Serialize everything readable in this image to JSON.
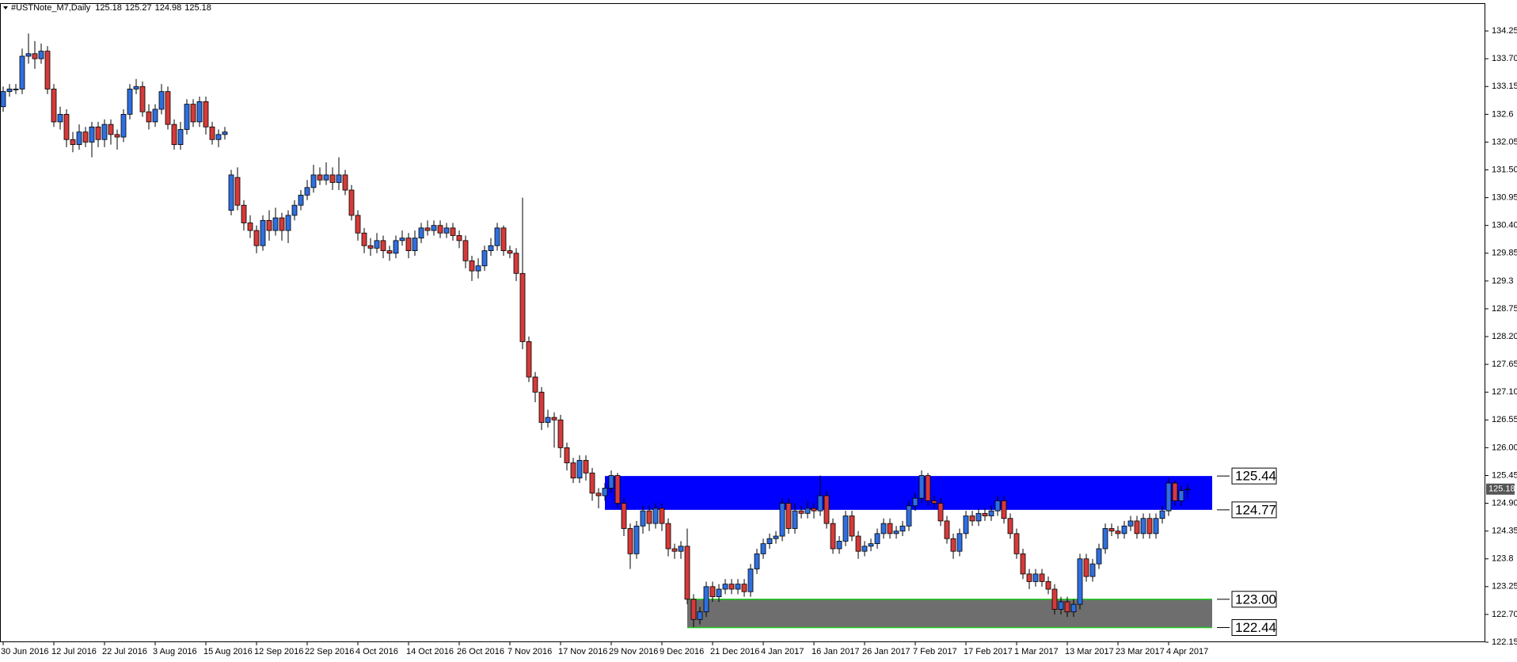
{
  "chart_data": {
    "type": "candlestick",
    "title": "#USTNote_M7,Daily",
    "categories": [
      "30 Jun 2016",
      null,
      null,
      null,
      null,
      null,
      null,
      null,
      "12 Jul 2016",
      null,
      null,
      null,
      null,
      null,
      null,
      null,
      "22 Jul 2016",
      null,
      null,
      null,
      null,
      null,
      null,
      null,
      "3 Aug 2016",
      null,
      null,
      null,
      null,
      null,
      null,
      null,
      "15 Aug 2016",
      null,
      null,
      null,
      null,
      null,
      null,
      null,
      "12 Sep 2016",
      null,
      null,
      null,
      null,
      null,
      null,
      null,
      "22 Sep 2016",
      null,
      null,
      null,
      null,
      null,
      null,
      null,
      "4 Oct 2016",
      null,
      null,
      null,
      null,
      null,
      null,
      null,
      "14 Oct 2016",
      null,
      null,
      null,
      null,
      null,
      null,
      null,
      "26 Oct 2016",
      null,
      null,
      null,
      null,
      null,
      null,
      null,
      "7 Nov 2016",
      null,
      null,
      null,
      null,
      null,
      null,
      null,
      "17 Nov 2016",
      null,
      null,
      null,
      null,
      null,
      null,
      null,
      "29 Nov 2016",
      null,
      null,
      null,
      null,
      null,
      null,
      null,
      "9 Dec 2016",
      null,
      null,
      null,
      null,
      null,
      null,
      null,
      "21 Dec 2016",
      null,
      null,
      null,
      null,
      null,
      null,
      null,
      "4 Jan 2017",
      null,
      null,
      null,
      null,
      null,
      null,
      null,
      "16 Jan 2017",
      null,
      null,
      null,
      null,
      null,
      null,
      null,
      "26 Jan 2017",
      null,
      null,
      null,
      null,
      null,
      null,
      null,
      "7 Feb 2017",
      null,
      null,
      null,
      null,
      null,
      null,
      null,
      "17 Feb 2017",
      null,
      null,
      null,
      null,
      null,
      null,
      null,
      "1 Mar 2017",
      null,
      null,
      null,
      null,
      null,
      null,
      null,
      "13 Mar 2017",
      null,
      null,
      null,
      null,
      null,
      null,
      null,
      "23 Mar 2017",
      null,
      null,
      null,
      null,
      null,
      null,
      null,
      "4 Apr 2017",
      null,
      null,
      null
    ],
    "open": [
      132.75,
      133.05,
      133.1,
      133.1,
      133.75,
      133.8,
      133.7,
      133.85,
      133.1,
      132.45,
      132.6,
      132.1,
      132.0,
      132.25,
      132.05,
      132.35,
      132.1,
      132.4,
      132.2,
      132.15,
      132.6,
      133.1,
      133.15,
      132.65,
      132.45,
      132.7,
      133.05,
      132.4,
      132.0,
      132.3,
      132.8,
      132.45,
      132.85,
      132.35,
      132.1,
      132.2,
      130.7,
      131.35,
      130.8,
      130.45,
      130.3,
      130.0,
      130.5,
      130.3,
      130.55,
      130.3,
      130.6,
      130.8,
      131.0,
      131.15,
      131.4,
      131.3,
      131.4,
      131.25,
      131.4,
      131.1,
      130.6,
      130.25,
      130.0,
      129.95,
      130.1,
      129.9,
      129.85,
      130.1,
      130.15,
      129.9,
      130.15,
      130.35,
      130.3,
      130.4,
      130.25,
      130.35,
      130.2,
      130.1,
      129.7,
      129.5,
      129.6,
      129.9,
      130.0,
      130.35,
      129.9,
      129.85,
      129.45,
      128.1,
      127.4,
      127.1,
      126.5,
      126.6,
      126.55,
      126.0,
      125.7,
      125.4,
      125.75,
      125.5,
      125.1,
      125.05,
      125.2,
      125.45,
      124.9,
      124.4,
      123.9,
      124.45,
      124.75,
      124.5,
      124.8,
      124.5,
      124.0,
      123.95,
      124.05,
      123.0,
      122.6,
      122.75,
      123.25,
      123.05,
      123.2,
      123.3,
      123.2,
      123.3,
      123.15,
      123.6,
      123.9,
      124.1,
      124.2,
      124.25,
      124.9,
      124.4,
      124.75,
      124.7,
      124.8,
      124.75,
      125.05,
      124.5,
      124.0,
      124.15,
      124.65,
      124.25,
      123.95,
      124.05,
      124.1,
      124.3,
      124.5,
      124.3,
      124.35,
      124.45,
      124.85,
      125.0,
      125.45,
      124.95,
      124.9,
      124.55,
      124.2,
      123.95,
      124.3,
      124.65,
      124.55,
      124.7,
      124.65,
      124.75,
      124.95,
      124.6,
      124.3,
      123.9,
      123.5,
      123.35,
      123.5,
      123.35,
      123.2,
      122.8,
      122.95,
      122.75,
      122.9,
      123.8,
      123.45,
      123.7,
      124.0,
      124.4,
      124.35,
      124.3,
      124.45,
      124.55,
      124.3,
      124.6,
      124.3,
      124.6,
      124.75,
      125.3,
      124.95,
      125.18
    ],
    "high": [
      133.15,
      133.2,
      133.2,
      133.9,
      134.2,
      134.05,
      134.0,
      133.95,
      133.2,
      132.75,
      132.7,
      132.25,
      132.4,
      132.35,
      132.45,
      132.45,
      132.5,
      132.5,
      132.3,
      132.7,
      133.2,
      133.3,
      133.25,
      132.8,
      132.8,
      133.2,
      133.15,
      132.5,
      132.45,
      132.9,
      132.9,
      132.95,
      132.95,
      132.45,
      132.3,
      132.35,
      131.5,
      131.55,
      130.9,
      130.6,
      130.4,
      130.6,
      130.7,
      130.75,
      130.65,
      130.7,
      130.9,
      131.1,
      131.3,
      131.6,
      131.55,
      131.65,
      131.55,
      131.75,
      131.5,
      131.2,
      130.7,
      130.35,
      130.15,
      130.25,
      130.2,
      130.0,
      130.2,
      130.3,
      130.25,
      130.3,
      130.45,
      130.5,
      130.5,
      130.5,
      130.45,
      130.45,
      130.3,
      130.2,
      129.8,
      129.75,
      130.0,
      130.15,
      130.45,
      130.4,
      130.0,
      129.95,
      130.95,
      128.2,
      127.5,
      127.2,
      126.75,
      126.7,
      126.65,
      126.1,
      125.8,
      125.85,
      125.85,
      125.6,
      125.2,
      125.3,
      125.55,
      125.5,
      125.0,
      124.5,
      124.55,
      124.85,
      124.85,
      124.9,
      124.9,
      124.6,
      124.1,
      124.15,
      124.4,
      123.1,
      122.85,
      123.35,
      123.35,
      123.3,
      123.4,
      123.4,
      123.4,
      123.4,
      123.7,
      124.0,
      124.2,
      124.3,
      124.35,
      125.0,
      125.0,
      124.9,
      124.85,
      124.95,
      124.9,
      125.45,
      125.15,
      124.6,
      124.25,
      124.75,
      124.75,
      124.35,
      124.15,
      124.2,
      124.4,
      124.6,
      124.6,
      124.45,
      124.55,
      124.95,
      125.1,
      125.55,
      125.5,
      125.05,
      125.0,
      124.65,
      124.3,
      124.4,
      124.75,
      124.75,
      124.8,
      124.8,
      124.85,
      125.05,
      125.05,
      124.7,
      124.4,
      124.0,
      123.6,
      123.6,
      123.6,
      123.45,
      123.3,
      123.05,
      123.05,
      123.0,
      123.9,
      123.9,
      123.8,
      124.1,
      124.5,
      124.5,
      124.45,
      124.55,
      124.65,
      124.65,
      124.7,
      124.7,
      124.7,
      124.85,
      125.4,
      125.35,
      125.25,
      125.27
    ],
    "low": [
      132.65,
      132.95,
      133.0,
      133.0,
      133.6,
      133.5,
      133.6,
      133.0,
      132.35,
      132.3,
      131.95,
      131.85,
      131.9,
      131.95,
      131.75,
      131.95,
      131.95,
      132.0,
      131.9,
      132.05,
      132.5,
      133.0,
      132.55,
      132.3,
      132.35,
      132.6,
      132.3,
      131.9,
      131.9,
      132.2,
      132.35,
      132.35,
      132.2,
      132.0,
      131.95,
      132.1,
      130.6,
      130.7,
      130.3,
      130.15,
      129.85,
      129.9,
      130.1,
      130.2,
      130.1,
      130.05,
      130.5,
      130.7,
      130.9,
      131.05,
      131.2,
      131.2,
      131.1,
      131.1,
      131.0,
      130.5,
      130.1,
      129.85,
      129.8,
      129.85,
      129.75,
      129.7,
      129.75,
      130.0,
      129.75,
      129.8,
      130.05,
      130.2,
      130.2,
      130.15,
      130.15,
      130.1,
      129.95,
      129.55,
      129.3,
      129.35,
      129.5,
      129.8,
      129.9,
      129.8,
      129.75,
      129.3,
      127.95,
      127.3,
      126.9,
      126.35,
      126.4,
      126.0,
      125.8,
      125.55,
      125.3,
      125.3,
      125.35,
      124.95,
      124.8,
      124.95,
      125.1,
      124.8,
      124.25,
      123.6,
      123.8,
      124.3,
      124.35,
      124.4,
      124.35,
      123.85,
      123.8,
      123.8,
      122.9,
      122.45,
      122.5,
      122.65,
      122.95,
      122.95,
      123.1,
      123.1,
      123.1,
      123.05,
      123.05,
      123.5,
      123.8,
      124.0,
      124.1,
      124.15,
      124.3,
      124.3,
      124.6,
      124.6,
      124.6,
      124.65,
      124.4,
      123.9,
      123.9,
      124.05,
      124.15,
      123.8,
      123.85,
      123.95,
      124.0,
      124.2,
      124.2,
      124.2,
      124.25,
      124.35,
      124.75,
      124.9,
      124.85,
      124.8,
      124.45,
      124.1,
      123.8,
      123.85,
      124.2,
      124.45,
      124.45,
      124.55,
      124.55,
      124.65,
      124.5,
      124.2,
      123.8,
      123.4,
      123.2,
      123.25,
      123.25,
      123.1,
      122.7,
      122.7,
      122.65,
      122.65,
      122.8,
      123.35,
      123.35,
      123.6,
      123.9,
      124.25,
      124.2,
      124.2,
      124.35,
      124.2,
      124.2,
      124.2,
      124.2,
      124.5,
      124.65,
      124.85,
      124.85,
      124.98
    ],
    "close": [
      133.05,
      133.1,
      133.1,
      133.75,
      133.8,
      133.7,
      133.85,
      133.1,
      132.45,
      132.6,
      132.1,
      132.0,
      132.25,
      132.05,
      132.35,
      132.1,
      132.4,
      132.2,
      132.15,
      132.6,
      133.1,
      133.15,
      132.65,
      132.45,
      132.7,
      133.05,
      132.4,
      132.0,
      132.3,
      132.8,
      132.45,
      132.85,
      132.35,
      132.1,
      132.2,
      132.25,
      131.4,
      130.8,
      130.45,
      130.3,
      130.0,
      130.5,
      130.3,
      130.55,
      130.3,
      130.6,
      130.8,
      131.0,
      131.15,
      131.4,
      131.3,
      131.4,
      131.25,
      131.4,
      131.1,
      130.6,
      130.25,
      130.0,
      129.95,
      130.1,
      129.9,
      129.85,
      130.1,
      130.15,
      129.9,
      130.15,
      130.35,
      130.3,
      130.4,
      130.25,
      130.35,
      130.2,
      130.1,
      129.7,
      129.5,
      129.6,
      129.9,
      130.0,
      130.35,
      129.9,
      129.85,
      129.45,
      128.1,
      127.4,
      127.1,
      126.5,
      126.6,
      126.55,
      126.0,
      125.7,
      125.4,
      125.75,
      125.5,
      125.1,
      125.05,
      125.2,
      125.45,
      124.9,
      124.4,
      123.9,
      124.45,
      124.75,
      124.5,
      124.8,
      124.5,
      124.0,
      123.95,
      124.05,
      123.0,
      122.6,
      122.75,
      123.25,
      123.05,
      123.2,
      123.3,
      123.2,
      123.3,
      123.15,
      123.6,
      123.9,
      124.1,
      124.2,
      124.25,
      124.9,
      124.4,
      124.75,
      124.7,
      124.8,
      124.75,
      125.05,
      124.5,
      124.0,
      124.15,
      124.65,
      124.25,
      123.95,
      124.05,
      124.1,
      124.3,
      124.5,
      124.3,
      124.35,
      124.45,
      124.85,
      125.0,
      125.45,
      124.95,
      124.9,
      124.55,
      124.2,
      123.95,
      124.3,
      124.65,
      124.55,
      124.7,
      124.65,
      124.75,
      124.95,
      124.6,
      124.3,
      123.9,
      123.5,
      123.35,
      123.5,
      123.35,
      123.2,
      122.8,
      122.95,
      122.75,
      122.9,
      123.8,
      123.45,
      123.7,
      124.0,
      124.4,
      124.35,
      124.3,
      124.45,
      124.55,
      124.3,
      124.6,
      124.3,
      124.6,
      124.75,
      125.3,
      124.95,
      125.15,
      125.18
    ],
    "up_color": "#2f6fe0",
    "down_color": "#d63a3a",
    "ylim": [
      122.15,
      134.8
    ],
    "yticks": [
      134.25,
      {
        "value": 133.7,
        "label": "133.70"
      },
      133.15,
      132.6,
      132.05,
      {
        "value": 131.5,
        "label": "131.50"
      },
      130.95,
      {
        "value": 130.4,
        "label": "130.40"
      },
      129.85,
      129.3,
      128.75,
      {
        "value": 128.2,
        "label": "128.20"
      },
      127.65,
      {
        "value": 127.1,
        "label": "127.10"
      },
      126.55,
      {
        "value": 126,
        "label": "126.00"
      },
      125.45,
      {
        "value": 124.9,
        "label": "124.90"
      },
      124.35,
      123.8,
      123.25,
      {
        "value": 122.7,
        "label": "122.70"
      },
      122.15
    ],
    "grid": false,
    "zones": [
      {
        "high": 125.44,
        "low": 124.77,
        "color": "#0000ff"
      },
      {
        "high": {
          "value": 123,
          "label": "123.00"
        },
        "low": 122.44,
        "color": "#6e6e6e",
        "border_color": "#22cc22"
      }
    ]
  }
}
